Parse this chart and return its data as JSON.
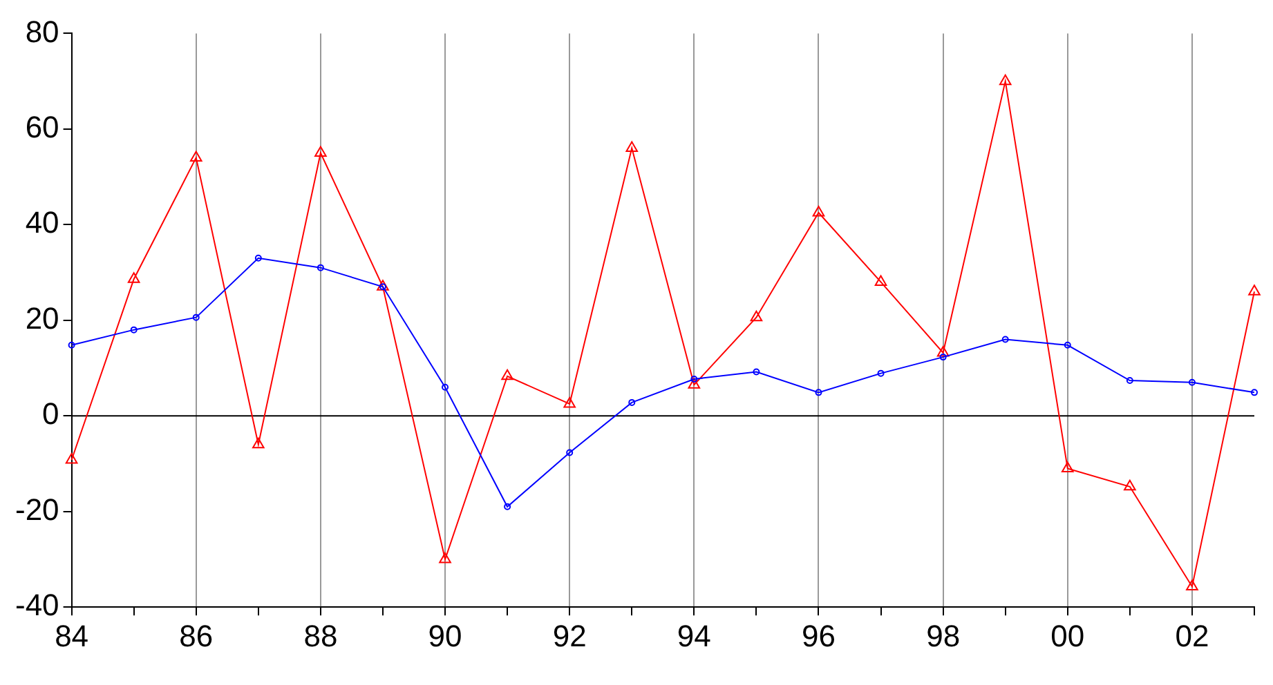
{
  "chart_data": {
    "type": "line",
    "categories": [
      "84",
      null,
      "86",
      null,
      "88",
      null,
      "90",
      null,
      "92",
      null,
      "94",
      null,
      "96",
      null,
      "98",
      null,
      "00",
      null,
      "02",
      null
    ],
    "series": [
      {
        "color": "#0000ff",
        "marker": "circle",
        "values": [
          14.8,
          18,
          20.6,
          33,
          31,
          27,
          6,
          -19,
          -7.7,
          2.8,
          7.7,
          9.2,
          4.9,
          8.9,
          12.3,
          16,
          14.8,
          7.4,
          7,
          4.9
        ]
      },
      {
        "color": "#ff0000",
        "marker": "triangle",
        "values": [
          -9.2,
          28.6,
          54,
          -6,
          55,
          27,
          -30,
          8.3,
          2.5,
          56,
          6.5,
          20.6,
          42.5,
          28,
          13.2,
          70,
          -11,
          -14.8,
          -35.7,
          26
        ]
      }
    ],
    "ylim": [
      -40,
      80
    ],
    "yticks": [
      -40,
      -20,
      0,
      20,
      40,
      60,
      80
    ],
    "grid": "x",
    "legend": false,
    "ref_lines": [
      {
        "axis": "y",
        "value": 0,
        "color": "#000000"
      }
    ]
  }
}
